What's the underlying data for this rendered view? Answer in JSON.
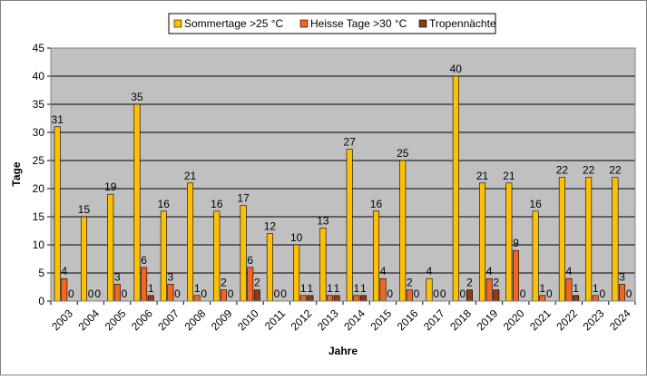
{
  "chart_data": {
    "type": "bar",
    "title": "",
    "xlabel": "Jahre",
    "ylabel": "Tage",
    "ylim": [
      0,
      45
    ],
    "yticks": [
      0,
      5,
      10,
      15,
      20,
      25,
      30,
      35,
      40,
      45
    ],
    "grid": true,
    "legend_position": "top-center",
    "categories": [
      "2003",
      "2004",
      "2005",
      "2006",
      "2007",
      "2008",
      "2009",
      "2010",
      "2011",
      "2012",
      "2013",
      "2014",
      "2015",
      "2016",
      "2017",
      "2018",
      "2019",
      "2020",
      "2021",
      "2022",
      "2023",
      "2024"
    ],
    "series": [
      {
        "name": "Sommertage >25 °C",
        "color": "#FFC000",
        "values": [
          31,
          15,
          19,
          35,
          16,
          21,
          16,
          17,
          12,
          10,
          13,
          27,
          16,
          25,
          4,
          40,
          21,
          21,
          16,
          22,
          22,
          22
        ]
      },
      {
        "name": "Heisse Tage >30 °C",
        "color": "#F26522",
        "values": [
          4,
          0,
          3,
          6,
          3,
          1,
          2,
          6,
          0,
          1,
          1,
          1,
          4,
          2,
          0,
          0,
          4,
          9,
          1,
          4,
          1,
          3
        ]
      },
      {
        "name": "Tropennächte",
        "color": "#8B3A1A",
        "values": [
          0,
          0,
          0,
          1,
          0,
          0,
          0,
          2,
          0,
          1,
          1,
          1,
          0,
          0,
          0,
          2,
          2,
          0,
          0,
          1,
          0,
          0
        ]
      }
    ],
    "colors": {
      "plot_background": "#C0C0C0",
      "grid": "#000000",
      "frame": "#808080"
    }
  }
}
